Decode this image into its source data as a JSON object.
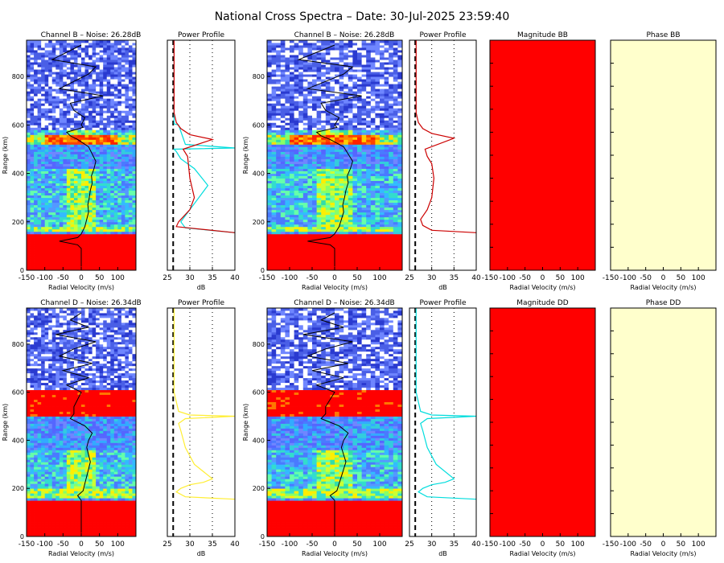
{
  "title": "National Cross Spectra – Date: 30-Jul-2025 23:59:40",
  "colors": {
    "spectra_background": "#ff0000",
    "noise_blue": "#4a5fe6",
    "power_b_left": "#00dddd",
    "power_d_left": "#ffee33",
    "power_b_right": "#cc0000",
    "power_d_right": "#00dddd",
    "magnitude_fill": "#ff0000",
    "phase_fill": "#ffffcc"
  },
  "chart_data": [
    {
      "id": "spec-b-1",
      "type": "heatmap",
      "title": "Channel B – Noise: 26.28dB",
      "xlabel": "Radial Velocity (m/s)",
      "ylabel": "Range (km)",
      "xlim": [
        -150,
        150
      ],
      "ylim": [
        0,
        950
      ],
      "xticks": [
        -150,
        -100,
        -50,
        0,
        50,
        100
      ],
      "yticks": [
        0,
        200,
        400,
        600,
        800
      ],
      "profile_range_km": [
        15,
        30,
        60,
        90,
        105,
        120,
        135,
        150,
        165,
        180,
        210,
        240,
        270,
        300,
        330,
        360,
        390,
        420,
        450,
        480,
        510,
        540,
        555,
        570,
        590,
        600,
        630,
        660,
        690,
        720,
        750,
        780,
        810,
        840,
        870,
        900,
        930
      ],
      "profile_velocity_ms": [
        0,
        0,
        0,
        0,
        -10,
        -60,
        -10,
        0,
        5,
        10,
        15,
        20,
        18,
        22,
        25,
        30,
        28,
        35,
        40,
        30,
        20,
        -10,
        -30,
        -40,
        5,
        0,
        10,
        -20,
        -30,
        60,
        -60,
        -20,
        20,
        40,
        -80,
        -40,
        0
      ]
    },
    {
      "id": "spec-b-2",
      "type": "heatmap",
      "title": "Channel B – Noise: 26.28dB",
      "xlabel": "Radial Velocity (m/s)",
      "ylabel": "Range (km)",
      "xlim": [
        -150,
        150
      ],
      "ylim": [
        0,
        950
      ],
      "xticks": [
        -150,
        -100,
        -50,
        0,
        50,
        100
      ],
      "yticks": [
        0,
        200,
        400,
        600,
        800
      ],
      "profile_range_km": [
        15,
        30,
        60,
        90,
        105,
        120,
        135,
        150,
        165,
        180,
        210,
        240,
        270,
        300,
        330,
        360,
        390,
        420,
        450,
        480,
        510,
        540,
        555,
        570,
        590,
        600,
        630,
        660,
        690,
        720,
        750,
        780,
        810,
        840,
        870,
        900,
        930
      ],
      "profile_velocity_ms": [
        0,
        0,
        0,
        0,
        -10,
        -60,
        -10,
        0,
        5,
        10,
        15,
        20,
        18,
        22,
        25,
        30,
        28,
        35,
        40,
        30,
        20,
        -10,
        -30,
        -40,
        5,
        0,
        10,
        -20,
        -30,
        60,
        -60,
        -20,
        20,
        40,
        -80,
        -40,
        0
      ]
    },
    {
      "id": "spec-d-1",
      "type": "heatmap",
      "title": "Channel D – Noise: 26.34dB",
      "xlabel": "Radial Velocity (m/s)",
      "ylabel": "Range (km)",
      "xlim": [
        -150,
        150
      ],
      "ylim": [
        0,
        950
      ],
      "xticks": [
        -150,
        -100,
        -50,
        0,
        50,
        100
      ],
      "yticks": [
        0,
        200,
        400,
        600,
        800
      ],
      "profile_range_km": [
        15,
        60,
        120,
        150,
        170,
        190,
        220,
        250,
        280,
        310,
        340,
        370,
        400,
        430,
        460,
        490,
        510,
        540,
        570,
        600,
        630,
        660,
        690,
        720,
        750,
        780,
        810,
        840,
        870,
        900,
        930
      ],
      "profile_velocity_ms": [
        0,
        0,
        0,
        0,
        -10,
        5,
        10,
        15,
        20,
        25,
        20,
        15,
        20,
        30,
        10,
        -30,
        -20,
        -20,
        -10,
        0,
        -40,
        20,
        -50,
        30,
        -60,
        -20,
        40,
        -70,
        20,
        -30,
        0
      ]
    },
    {
      "id": "spec-d-2",
      "type": "heatmap",
      "title": "Channel D – Noise: 26.34dB",
      "xlabel": "Radial Velocity (m/s)",
      "ylabel": "Range (km)",
      "xlim": [
        -150,
        150
      ],
      "ylim": [
        0,
        950
      ],
      "xticks": [
        -150,
        -100,
        -50,
        0,
        50,
        100
      ],
      "yticks": [
        0,
        200,
        400,
        600,
        800
      ],
      "profile_range_km": [
        15,
        60,
        120,
        150,
        170,
        190,
        220,
        250,
        280,
        310,
        340,
        370,
        400,
        430,
        460,
        490,
        510,
        540,
        570,
        600,
        630,
        660,
        690,
        720,
        750,
        780,
        810,
        840,
        870,
        900,
        930
      ],
      "profile_velocity_ms": [
        0,
        0,
        0,
        0,
        -10,
        5,
        10,
        15,
        20,
        25,
        20,
        15,
        20,
        30,
        10,
        -30,
        -20,
        -20,
        -10,
        0,
        -40,
        20,
        -50,
        30,
        -60,
        -20,
        40,
        -70,
        20,
        -30,
        0
      ]
    },
    {
      "id": "power-b-1",
      "type": "line",
      "title": "Power Profile",
      "xlabel": "dB",
      "xlim": [
        25,
        40
      ],
      "ylim": [
        0,
        950
      ],
      "xticks": [
        25,
        30,
        35,
        40
      ],
      "noise_db": 26.3,
      "series": [
        {
          "color_key": "power_b_left",
          "db": [
            40,
            29,
            28,
            30,
            32,
            34,
            31,
            28,
            27,
            26.5,
            40,
            29,
            27.5,
            26.5,
            26.5,
            26.5,
            26.5,
            26.5
          ],
          "range": [
            155,
            175,
            200,
            250,
            300,
            350,
            420,
            460,
            490,
            500,
            505,
            520,
            600,
            605,
            650,
            750,
            850,
            950
          ]
        },
        {
          "color_key": "power_b_right",
          "db": [
            40,
            27,
            27.5,
            30,
            31,
            30,
            29.5,
            28.5,
            35,
            30,
            28,
            27,
            26.5,
            26.5,
            26.5
          ],
          "range": [
            155,
            180,
            200,
            250,
            300,
            380,
            470,
            500,
            540,
            560,
            585,
            610,
            650,
            800,
            950
          ]
        }
      ]
    },
    {
      "id": "power-b-2",
      "type": "line",
      "title": "Power Profile",
      "xlabel": "dB",
      "xlim": [
        25,
        40
      ],
      "ylim": [
        0,
        950
      ],
      "xticks": [
        25,
        30,
        35,
        40
      ],
      "noise_db": 26.3,
      "series": [
        {
          "color_key": "power_b_right",
          "db": [
            40,
            30,
            28,
            27.5,
            29,
            30,
            30.5,
            30,
            29,
            28.5,
            35,
            30,
            28,
            27,
            26.5,
            26.5,
            26.5
          ],
          "range": [
            155,
            165,
            185,
            210,
            250,
            300,
            380,
            440,
            470,
            500,
            545,
            565,
            585,
            610,
            650,
            800,
            950
          ]
        }
      ]
    },
    {
      "id": "power-d-1",
      "type": "line",
      "title": "Power Profile",
      "xlabel": "dB",
      "xlim": [
        25,
        40
      ],
      "ylim": [
        0,
        950
      ],
      "xticks": [
        25,
        30,
        35,
        40
      ],
      "noise_db": 26.3,
      "series": [
        {
          "color_key": "power_d_left",
          "db": [
            40,
            29,
            27,
            28,
            30,
            33,
            35,
            31,
            29,
            28,
            27.5,
            29,
            40,
            30,
            27.5,
            26.5,
            26.5,
            26.5,
            26.5
          ],
          "range": [
            155,
            165,
            185,
            200,
            215,
            225,
            240,
            300,
            370,
            440,
            470,
            490,
            500,
            505,
            520,
            600,
            605,
            800,
            950
          ]
        }
      ]
    },
    {
      "id": "power-d-2",
      "type": "line",
      "title": "Power Profile",
      "xlabel": "dB",
      "xlim": [
        25,
        40
      ],
      "ylim": [
        0,
        950
      ],
      "xticks": [
        25,
        30,
        35,
        40
      ],
      "noise_db": 26.3,
      "series": [
        {
          "color_key": "power_d_right",
          "db": [
            40,
            29,
            27,
            28,
            30,
            33,
            35,
            31,
            29,
            28,
            27.5,
            29,
            40,
            30,
            27.5,
            26.5,
            26.5,
            26.5,
            26.5
          ],
          "range": [
            155,
            165,
            185,
            200,
            215,
            225,
            240,
            300,
            370,
            440,
            470,
            490,
            500,
            505,
            520,
            600,
            605,
            800,
            950
          ]
        }
      ]
    },
    {
      "id": "mag-bb",
      "type": "heatmap",
      "title": "Magnitude BB",
      "xlabel": "Radial Velocity (m/s)",
      "xlim": [
        -150,
        150
      ],
      "xticks": [
        -150,
        -100,
        -50,
        0,
        50,
        100
      ],
      "fill_key": "magnitude_fill"
    },
    {
      "id": "phase-bb",
      "type": "heatmap",
      "title": "Phase BB",
      "xlabel": "Radial Velocity (m/s)",
      "xlim": [
        -150,
        150
      ],
      "xticks": [
        -150,
        -100,
        -50,
        0,
        50,
        100
      ],
      "fill_key": "phase_fill"
    },
    {
      "id": "mag-dd",
      "type": "heatmap",
      "title": "Magnitude DD",
      "xlabel": "Radial Velocity (m/s)",
      "xlim": [
        -150,
        150
      ],
      "xticks": [
        -150,
        -100,
        -50,
        0,
        50,
        100
      ],
      "fill_key": "magnitude_fill"
    },
    {
      "id": "phase-dd",
      "type": "heatmap",
      "title": "Phase DD",
      "xlabel": "Radial Velocity (m/s)",
      "xlim": [
        -150,
        150
      ],
      "xticks": [
        -150,
        -100,
        -50,
        0,
        50,
        100
      ],
      "fill_key": "phase_fill"
    }
  ]
}
